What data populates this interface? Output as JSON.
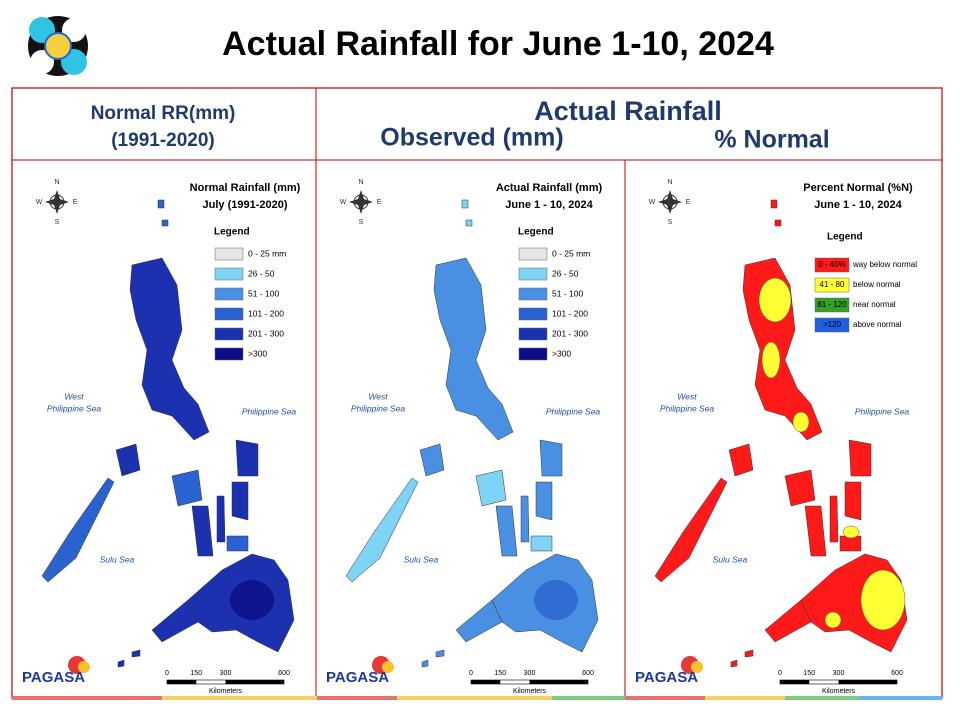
{
  "title": "Actual Rainfall for June 1-10, 2024",
  "header": {
    "normal": [
      "Normal RR(mm)",
      "(1991-2020)"
    ],
    "actual": "Actual Rainfall",
    "observed": "Observed (mm)",
    "percent": "% Normal"
  },
  "compass": [
    "N",
    "W",
    "E",
    "S"
  ],
  "seas": {
    "west": [
      "West",
      "Philippine Sea"
    ],
    "east": "Philippine Sea",
    "sulu": "Sulu Sea"
  },
  "scale": {
    "ticks": [
      0,
      150,
      300,
      600
    ],
    "unit": "Kilometers"
  },
  "logo": "PAGASA",
  "panels": [
    {
      "title": [
        "Normal Rainfall (mm)",
        "July (1991-2020)"
      ],
      "legend_title": "Legend",
      "legend": [
        {
          "label": "0 - 25 mm",
          "color": "#e6e6e6"
        },
        {
          "label": "26 - 50",
          "color": "#7fd4f5"
        },
        {
          "label": "51 - 100",
          "color": "#4a90e2"
        },
        {
          "label": "101 - 200",
          "color": "#2a63d0"
        },
        {
          "label": "201 - 300",
          "color": "#1c31b0"
        },
        {
          "label": ">300",
          "color": "#0c0d85"
        }
      ]
    },
    {
      "title": [
        "Actual Rainfall (mm)",
        "June 1 - 10, 2024"
      ],
      "legend_title": "Legend",
      "legend": [
        {
          "label": "0 - 25 mm",
          "color": "#e6e6e6"
        },
        {
          "label": "26 - 50",
          "color": "#7fd4f5"
        },
        {
          "label": "51 - 100",
          "color": "#4a90e2"
        },
        {
          "label": "101 - 200",
          "color": "#2a63d0"
        },
        {
          "label": "201 - 300",
          "color": "#1c31b0"
        },
        {
          "label": ">300",
          "color": "#0c0d85"
        }
      ]
    },
    {
      "title": [
        "Percent Normal (%N)",
        "June 1 - 10, 2024"
      ],
      "legend_title": "Legend",
      "legend": [
        {
          "label": "0 - 40%",
          "description": "way below normal",
          "color": "#ff1a1a"
        },
        {
          "label": "41 - 80",
          "description": "below normal",
          "color": "#ffff33"
        },
        {
          "label": "81 - 120",
          "description": "near normal",
          "color": "#33a02c"
        },
        {
          "label": ">120",
          "description": "above normal",
          "color": "#1f5fe0"
        }
      ]
    }
  ]
}
